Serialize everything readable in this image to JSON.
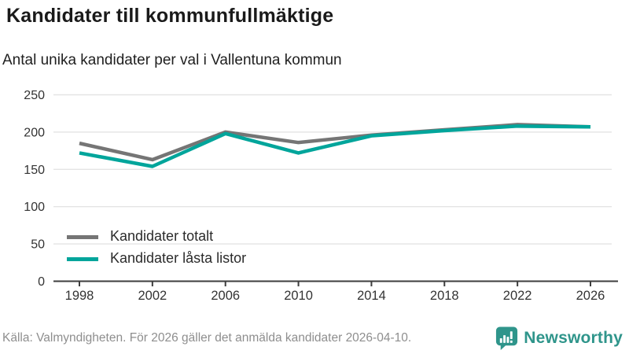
{
  "header": {
    "title": "Kandidater till kommunfullmäktige",
    "subtitle": "Antal unika kandidater per val i Vallentuna kommun"
  },
  "chart_data": {
    "type": "line",
    "x": [
      1998,
      2002,
      2006,
      2010,
      2014,
      2018,
      2022,
      2026
    ],
    "series": [
      {
        "name": "Kandidater totalt",
        "color": "#757575",
        "values": [
          185,
          163,
          200,
          186,
          196,
          203,
          210,
          207
        ]
      },
      {
        "name": "Kandidater låsta listor",
        "color": "#00a59b",
        "values": [
          172,
          154,
          198,
          172,
          195,
          202,
          208,
          207
        ]
      }
    ],
    "ylim": [
      0,
      250
    ],
    "yticks": [
      0,
      50,
      100,
      150,
      200,
      250
    ],
    "grid": "horizontal",
    "legend_position": "inside-bottom-left",
    "axis_color": "#3d3d3d",
    "grid_color": "#e4e4e4",
    "tick_label_color": "#333333"
  },
  "footer": {
    "source": "Källa: Valmyndigheten. För 2026 gäller det anmälda kandidater 2026-04-10.",
    "brand": "Newsworthy",
    "brand_color": "#2f958b"
  }
}
